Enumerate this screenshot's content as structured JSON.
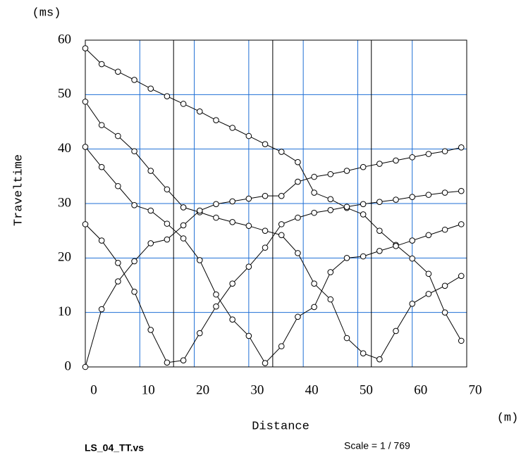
{
  "chart_data": {
    "type": "line",
    "y_unit": "(ms)",
    "y_label": "Traveltime",
    "x_label": "Distance",
    "x_unit": "(m)",
    "file_name": "LS_04_TT.vs",
    "scale_text": "Scale = 1 / 769",
    "x": [
      0,
      3,
      6,
      9,
      12,
      15,
      18,
      21,
      24,
      27,
      30,
      33,
      36,
      39,
      42,
      45,
      48,
      51,
      54,
      57,
      60,
      63,
      66,
      69
    ],
    "series": [
      {
        "color": "#000000",
        "values": [
          58.5,
          55.6,
          54.2,
          52.7,
          51.1,
          49.7,
          48.3,
          46.9,
          45.3,
          43.9,
          42.4,
          40.9,
          39.5,
          37.6,
          32.0,
          30.8,
          29.2,
          28.0,
          25.0,
          22.4,
          19.9,
          17.1,
          10.0,
          4.8
        ]
      },
      {
        "color": "#000000",
        "values": [
          48.7,
          44.4,
          42.4,
          39.6,
          36.0,
          32.6,
          29.3,
          28.4,
          27.4,
          26.6,
          25.9,
          25.0,
          24.2,
          20.9,
          15.3,
          12.4,
          5.3,
          2.5,
          1.4,
          6.6,
          11.6,
          13.4,
          14.9,
          16.7
        ]
      },
      {
        "color": "#000000",
        "values": [
          40.4,
          36.7,
          33.2,
          29.7,
          28.7,
          26.3,
          23.6,
          19.6,
          13.3,
          8.7,
          5.7,
          0.7,
          3.8,
          9.2,
          11.0,
          17.4,
          20.0,
          20.3,
          21.3,
          22.2,
          23.2,
          24.2,
          25.2,
          26.2
        ]
      },
      {
        "color": "#000000",
        "values": [
          26.2,
          23.2,
          19.1,
          13.8,
          6.8,
          0.8,
          1.2,
          6.2,
          11.1,
          15.3,
          18.4,
          21.9,
          26.2,
          27.4,
          28.3,
          28.8,
          29.4,
          29.9,
          30.3,
          30.7,
          31.2,
          31.6,
          32.0,
          32.3
        ]
      },
      {
        "color": "#000000",
        "values": [
          0,
          10.6,
          15.7,
          19.4,
          22.7,
          23.4,
          26.0,
          28.7,
          29.9,
          30.4,
          30.9,
          31.4,
          31.4,
          34.0,
          34.9,
          35.4,
          36.0,
          36.7,
          37.3,
          37.9,
          38.5,
          39.1,
          39.6,
          40.3
        ]
      }
    ],
    "shot_positions": [
      16.2,
      34.4,
      52.5
    ],
    "xlim": [
      0,
      70
    ],
    "xticks": [
      0,
      10,
      20,
      30,
      40,
      50,
      60,
      70
    ],
    "ylim": [
      0,
      60
    ],
    "yticks": [
      0,
      10,
      20,
      30,
      40,
      50,
      60
    ],
    "grid": true,
    "grid_color": "#1f6fd6"
  }
}
